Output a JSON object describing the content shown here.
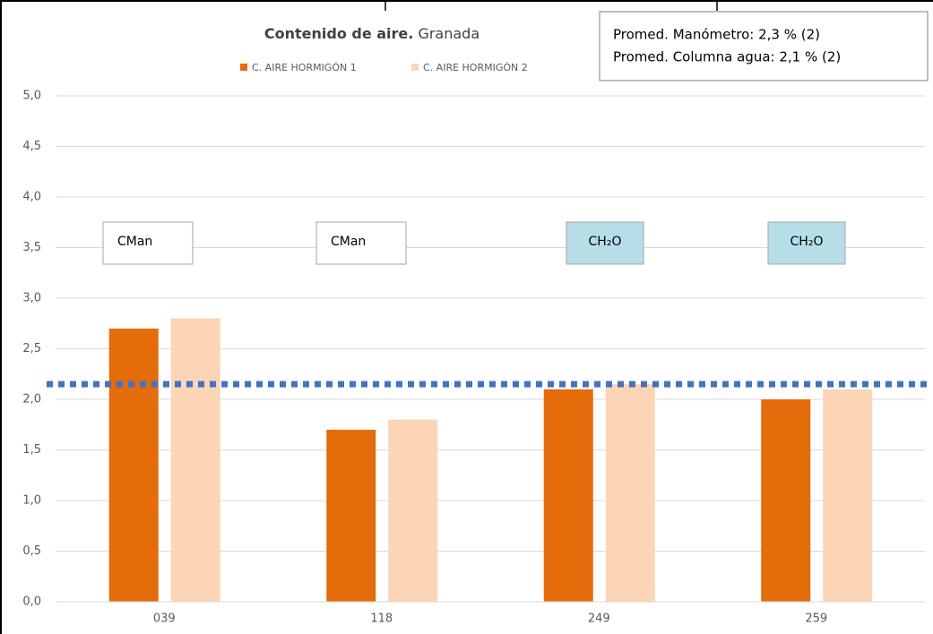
{
  "chart_data": {
    "type": "bar",
    "title": [
      "Contenido de aire.",
      "Granada"
    ],
    "categories": [
      "039",
      "118",
      "249",
      "259"
    ],
    "series": [
      {
        "name": "C. AIRE HORMIGÓN 1",
        "color": "#e46c0a",
        "values": [
          2.7,
          1.7,
          2.1,
          2.0
        ]
      },
      {
        "name": "C. AIRE HORMIGÓN 2",
        "color": "#fbd5b5",
        "values": [
          2.8,
          1.8,
          2.15,
          2.1
        ]
      }
    ],
    "ylim": [
      0,
      5
    ],
    "yticks": [
      {
        "value": 0,
        "label": "0,0"
      },
      {
        "value": 0.5,
        "label": "0,5"
      },
      {
        "value": 1,
        "label": "1,0"
      },
      {
        "value": 1.5,
        "label": "1,5"
      },
      {
        "value": 2,
        "label": "2,0"
      },
      {
        "value": 2.5,
        "label": "2,5"
      },
      {
        "value": 3,
        "label": "3,0"
      },
      {
        "value": 3.5,
        "label": "3,5"
      },
      {
        "value": 4,
        "label": "4,0"
      },
      {
        "value": 4.5,
        "label": "4,5"
      },
      {
        "value": 5,
        "label": "5,0"
      }
    ],
    "grid": true,
    "reference_line": {
      "value": 2.15,
      "color": "#4472c4"
    },
    "info_box": [
      "Promed. Manómetro: 2,3 % (2)",
      "Promed. Columna agua: 2,1 % (2)"
    ],
    "annotations": [
      {
        "text": "CMan",
        "fill": "#ffffff"
      },
      {
        "text": "CMan",
        "fill": "#ffffff"
      },
      {
        "text": "CH₂O",
        "fill": "#b7dde8"
      },
      {
        "text": "CH₂O",
        "fill": "#b7dde8"
      }
    ]
  }
}
